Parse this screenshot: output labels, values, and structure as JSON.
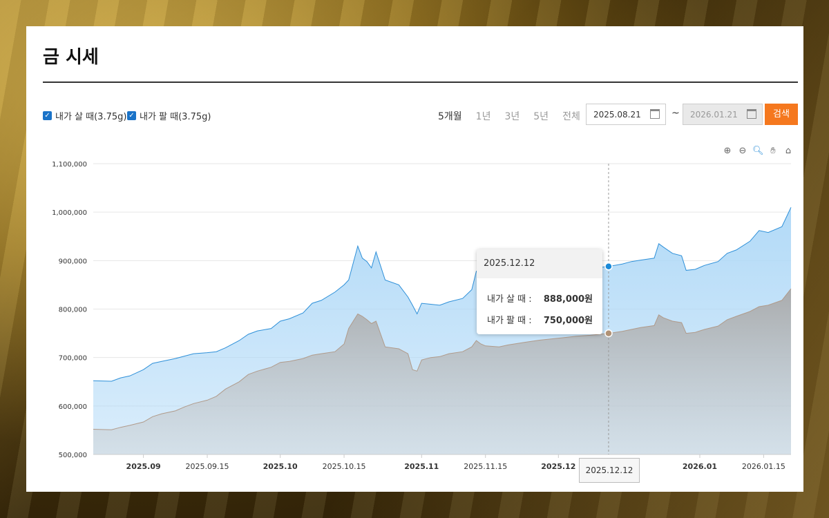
{
  "page": {
    "title": "금 시세"
  },
  "controls": {
    "buy_checkbox_label": "내가 살 때(3.75g)",
    "sell_checkbox_label": "내가 팔 때(3.75g)",
    "periods": [
      "5개월",
      "1년",
      "3년",
      "5년",
      "전체"
    ],
    "active_period": "5개월",
    "start_date": "2025.08.21",
    "end_date": "2026.01.21",
    "tilde": "~",
    "search_label": "검색"
  },
  "toolbar": {
    "icons": [
      "zoom-in-icon",
      "zoom-out-icon",
      "magnify-icon",
      "pan-hand-icon",
      "home-icon"
    ]
  },
  "tooltip": {
    "date": "2025.12.12",
    "buy_label": "내가 살 때 :",
    "buy_value": "888,000원",
    "sell_label": "내가 팔 때 :",
    "sell_value": "750,000원"
  },
  "crosshair_label": "2025.12.12",
  "colors": {
    "buy_line": "#2d8fd8",
    "buy_fill": "#aed8f7",
    "sell_line": "#b09a8a",
    "sell_fill": "#c8c8c8",
    "accent": "#f5781e"
  },
  "chart_data": {
    "type": "area",
    "y_ticks": [
      "1,100,000",
      "1,000,000",
      "900,000",
      "800,000",
      "700,000",
      "600,000",
      "500,000"
    ],
    "ylim": [
      500000,
      1100000
    ],
    "x_ticks": [
      {
        "label": "2025.09",
        "bold": true,
        "date": "2025-09-01"
      },
      {
        "label": "2025.09.15",
        "bold": false,
        "date": "2025-09-15"
      },
      {
        "label": "2025.10",
        "bold": true,
        "date": "2025-10-01"
      },
      {
        "label": "2025.10.15",
        "bold": false,
        "date": "2025-10-15"
      },
      {
        "label": "2025.11",
        "bold": true,
        "date": "2025-11-01"
      },
      {
        "label": "2025.11.15",
        "bold": false,
        "date": "2025-11-15"
      },
      {
        "label": "2025.12",
        "bold": true,
        "date": "2025-12-01"
      },
      {
        "label": "2026.01",
        "bold": true,
        "date": "2026-01-01"
      },
      {
        "label": "2026.01.15",
        "bold": false,
        "date": "2026-01-15"
      }
    ],
    "xlim": [
      "2025-08-21",
      "2026-01-21"
    ],
    "highlight_date": "2025-12-12",
    "series": [
      {
        "name": "내가 살 때(3.75g)",
        "points": [
          [
            "2025-08-21",
            652000
          ],
          [
            "2025-08-25",
            651000
          ],
          [
            "2025-08-27",
            658000
          ],
          [
            "2025-08-29",
            662000
          ],
          [
            "2025-09-01",
            675000
          ],
          [
            "2025-09-03",
            688000
          ],
          [
            "2025-09-05",
            692000
          ],
          [
            "2025-09-08",
            698000
          ],
          [
            "2025-09-10",
            703000
          ],
          [
            "2025-09-12",
            708000
          ],
          [
            "2025-09-15",
            710000
          ],
          [
            "2025-09-17",
            712000
          ],
          [
            "2025-09-19",
            720000
          ],
          [
            "2025-09-22",
            735000
          ],
          [
            "2025-09-24",
            748000
          ],
          [
            "2025-09-26",
            755000
          ],
          [
            "2025-09-29",
            760000
          ],
          [
            "2025-10-01",
            775000
          ],
          [
            "2025-10-03",
            780000
          ],
          [
            "2025-10-06",
            792000
          ],
          [
            "2025-10-08",
            812000
          ],
          [
            "2025-10-10",
            818000
          ],
          [
            "2025-10-13",
            835000
          ],
          [
            "2025-10-15",
            850000
          ],
          [
            "2025-10-16",
            860000
          ],
          [
            "2025-10-17",
            895000
          ],
          [
            "2025-10-18",
            930000
          ],
          [
            "2025-10-19",
            905000
          ],
          [
            "2025-10-20",
            898000
          ],
          [
            "2025-10-21",
            885000
          ],
          [
            "2025-10-22",
            918000
          ],
          [
            "2025-10-24",
            860000
          ],
          [
            "2025-10-27",
            850000
          ],
          [
            "2025-10-29",
            825000
          ],
          [
            "2025-10-30",
            808000
          ],
          [
            "2025-10-31",
            790000
          ],
          [
            "2025-11-01",
            812000
          ],
          [
            "2025-11-03",
            810000
          ],
          [
            "2025-11-05",
            808000
          ],
          [
            "2025-11-07",
            815000
          ],
          [
            "2025-11-10",
            822000
          ],
          [
            "2025-11-12",
            840000
          ],
          [
            "2025-11-13",
            878000
          ],
          [
            "2025-11-14",
            870000
          ],
          [
            "2025-11-15",
            860000
          ],
          [
            "2025-11-18",
            855000
          ],
          [
            "2025-11-20",
            862000
          ],
          [
            "2025-11-24",
            870000
          ],
          [
            "2025-11-27",
            876000
          ],
          [
            "2025-12-01",
            880000
          ],
          [
            "2025-12-03",
            882000
          ],
          [
            "2025-12-05",
            884000
          ],
          [
            "2025-12-08",
            885000
          ],
          [
            "2025-12-10",
            886000
          ],
          [
            "2025-12-12",
            888000
          ],
          [
            "2025-12-15",
            893000
          ],
          [
            "2025-12-17",
            898000
          ],
          [
            "2025-12-19",
            901000
          ],
          [
            "2025-12-22",
            905000
          ],
          [
            "2025-12-23",
            935000
          ],
          [
            "2025-12-24",
            928000
          ],
          [
            "2025-12-26",
            915000
          ],
          [
            "2025-12-28",
            910000
          ],
          [
            "2025-12-29",
            880000
          ],
          [
            "2025-12-31",
            882000
          ],
          [
            "2026-01-02",
            890000
          ],
          [
            "2026-01-05",
            898000
          ],
          [
            "2026-01-07",
            915000
          ],
          [
            "2026-01-09",
            922000
          ],
          [
            "2026-01-12",
            940000
          ],
          [
            "2026-01-14",
            962000
          ],
          [
            "2026-01-16",
            958000
          ],
          [
            "2026-01-19",
            970000
          ],
          [
            "2026-01-21",
            1010000
          ]
        ]
      },
      {
        "name": "내가 팔 때(3.75g)",
        "points": [
          [
            "2025-08-21",
            552000
          ],
          [
            "2025-08-25",
            551000
          ],
          [
            "2025-08-27",
            556000
          ],
          [
            "2025-08-29",
            560000
          ],
          [
            "2025-09-01",
            567000
          ],
          [
            "2025-09-03",
            578000
          ],
          [
            "2025-09-05",
            584000
          ],
          [
            "2025-09-08",
            590000
          ],
          [
            "2025-09-10",
            598000
          ],
          [
            "2025-09-12",
            605000
          ],
          [
            "2025-09-15",
            612000
          ],
          [
            "2025-09-17",
            620000
          ],
          [
            "2025-09-19",
            635000
          ],
          [
            "2025-09-22",
            650000
          ],
          [
            "2025-09-24",
            665000
          ],
          [
            "2025-09-26",
            672000
          ],
          [
            "2025-09-29",
            680000
          ],
          [
            "2025-10-01",
            690000
          ],
          [
            "2025-10-03",
            692000
          ],
          [
            "2025-10-06",
            698000
          ],
          [
            "2025-10-08",
            705000
          ],
          [
            "2025-10-10",
            708000
          ],
          [
            "2025-10-13",
            712000
          ],
          [
            "2025-10-15",
            728000
          ],
          [
            "2025-10-16",
            760000
          ],
          [
            "2025-10-17",
            775000
          ],
          [
            "2025-10-18",
            790000
          ],
          [
            "2025-10-19",
            785000
          ],
          [
            "2025-10-20",
            778000
          ],
          [
            "2025-10-21",
            770000
          ],
          [
            "2025-10-22",
            775000
          ],
          [
            "2025-10-24",
            722000
          ],
          [
            "2025-10-27",
            718000
          ],
          [
            "2025-10-29",
            708000
          ],
          [
            "2025-10-30",
            675000
          ],
          [
            "2025-10-31",
            672000
          ],
          [
            "2025-11-01",
            695000
          ],
          [
            "2025-11-03",
            700000
          ],
          [
            "2025-11-05",
            702000
          ],
          [
            "2025-11-07",
            708000
          ],
          [
            "2025-11-10",
            712000
          ],
          [
            "2025-11-12",
            722000
          ],
          [
            "2025-11-13",
            735000
          ],
          [
            "2025-11-14",
            728000
          ],
          [
            "2025-11-15",
            724000
          ],
          [
            "2025-11-18",
            722000
          ],
          [
            "2025-11-20",
            726000
          ],
          [
            "2025-11-24",
            732000
          ],
          [
            "2025-11-27",
            736000
          ],
          [
            "2025-12-01",
            740000
          ],
          [
            "2025-12-03",
            742000
          ],
          [
            "2025-12-05",
            744000
          ],
          [
            "2025-12-08",
            746000
          ],
          [
            "2025-12-10",
            748000
          ],
          [
            "2025-12-12",
            750000
          ],
          [
            "2025-12-15",
            754000
          ],
          [
            "2025-12-17",
            758000
          ],
          [
            "2025-12-19",
            762000
          ],
          [
            "2025-12-22",
            766000
          ],
          [
            "2025-12-23",
            788000
          ],
          [
            "2025-12-24",
            782000
          ],
          [
            "2025-12-26",
            775000
          ],
          [
            "2025-12-28",
            772000
          ],
          [
            "2025-12-29",
            750000
          ],
          [
            "2025-12-31",
            752000
          ],
          [
            "2026-01-02",
            758000
          ],
          [
            "2026-01-05",
            765000
          ],
          [
            "2026-01-07",
            778000
          ],
          [
            "2026-01-09",
            785000
          ],
          [
            "2026-01-12",
            795000
          ],
          [
            "2026-01-14",
            805000
          ],
          [
            "2026-01-16",
            808000
          ],
          [
            "2026-01-19",
            818000
          ],
          [
            "2026-01-21",
            842000
          ]
        ]
      }
    ]
  }
}
